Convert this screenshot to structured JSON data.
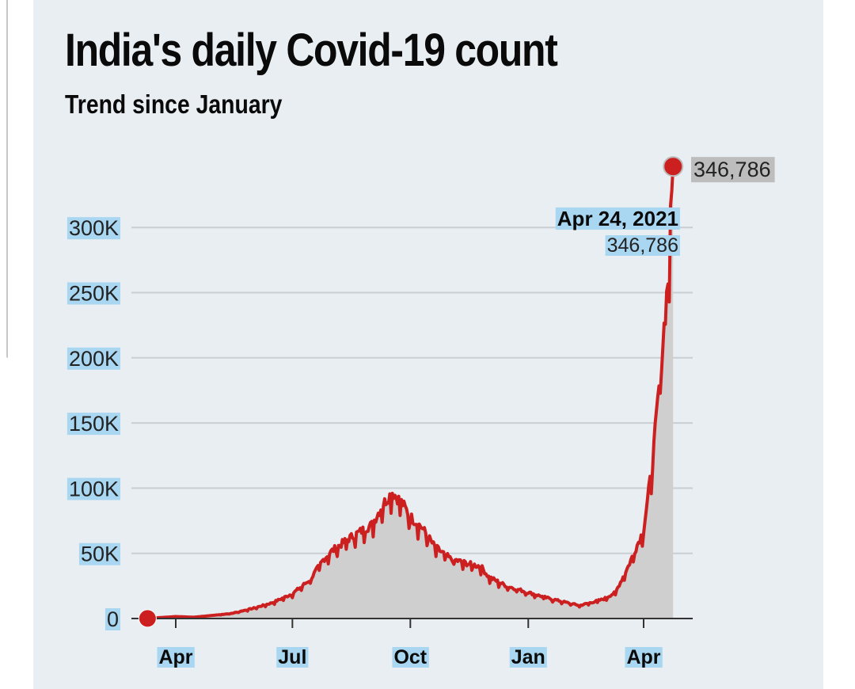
{
  "page": {
    "title": "India's daily Covid-19 count",
    "subtitle": "Trend since January"
  },
  "colors": {
    "line": "#cc1f1f",
    "area": "#cfcfcf",
    "grid": "#c9ced3",
    "background": "#e9eef2",
    "label_highlight": "#a9d6f0",
    "end_label_bg": "#bdbdbd"
  },
  "chart_data": {
    "type": "area",
    "title": "India's daily Covid-19 count",
    "subtitle": "Trend since January",
    "xlabel": "",
    "ylabel": "",
    "ylim": [
      0,
      350000
    ],
    "yticks": [
      0,
      50000,
      100000,
      150000,
      200000,
      250000,
      300000
    ],
    "ytick_labels": [
      "0",
      "50K",
      "100K",
      "150K",
      "200K",
      "250K",
      "300K"
    ],
    "xticks": [
      "2020-04-01",
      "2020-07-01",
      "2020-10-01",
      "2021-01-01",
      "2021-04-01"
    ],
    "xtick_labels": [
      "Apr",
      "Jul",
      "Oct",
      "Jan",
      "Apr"
    ],
    "xlim": [
      "2020-03-15",
      "2021-05-01"
    ],
    "grid": true,
    "series": [
      {
        "x": [
          "2020-03-10",
          "2020-04-01",
          "2020-04-15",
          "2020-05-01",
          "2020-05-15",
          "2020-06-01",
          "2020-06-15",
          "2020-07-01",
          "2020-07-15",
          "2020-07-25",
          "2020-08-01",
          "2020-08-15",
          "2020-09-01",
          "2020-09-10",
          "2020-09-17",
          "2020-09-25",
          "2020-10-01",
          "2020-10-10",
          "2020-10-20",
          "2020-11-01",
          "2020-11-15",
          "2020-11-25",
          "2020-12-01",
          "2020-12-15",
          "2021-01-01",
          "2021-01-15",
          "2021-02-01",
          "2021-02-10",
          "2021-02-20",
          "2021-03-01",
          "2021-03-10",
          "2021-03-20",
          "2021-04-01",
          "2021-04-08",
          "2021-04-15",
          "2021-04-20",
          "2021-04-24"
        ],
        "values": [
          50,
          1500,
          1000,
          2500,
          4000,
          8000,
          12000,
          19000,
          30000,
          45000,
          52000,
          62000,
          72000,
          88000,
          97000,
          88000,
          78000,
          70000,
          55000,
          46000,
          42000,
          40000,
          32000,
          25000,
          20000,
          16000,
          12000,
          10000,
          12500,
          15000,
          20000,
          40000,
          68000,
          120000,
          200000,
          260000,
          346786
        ]
      }
    ],
    "annotations": [
      {
        "date": "Apr 24, 2021",
        "value": "346,786"
      }
    ],
    "end_label": "346,786"
  }
}
